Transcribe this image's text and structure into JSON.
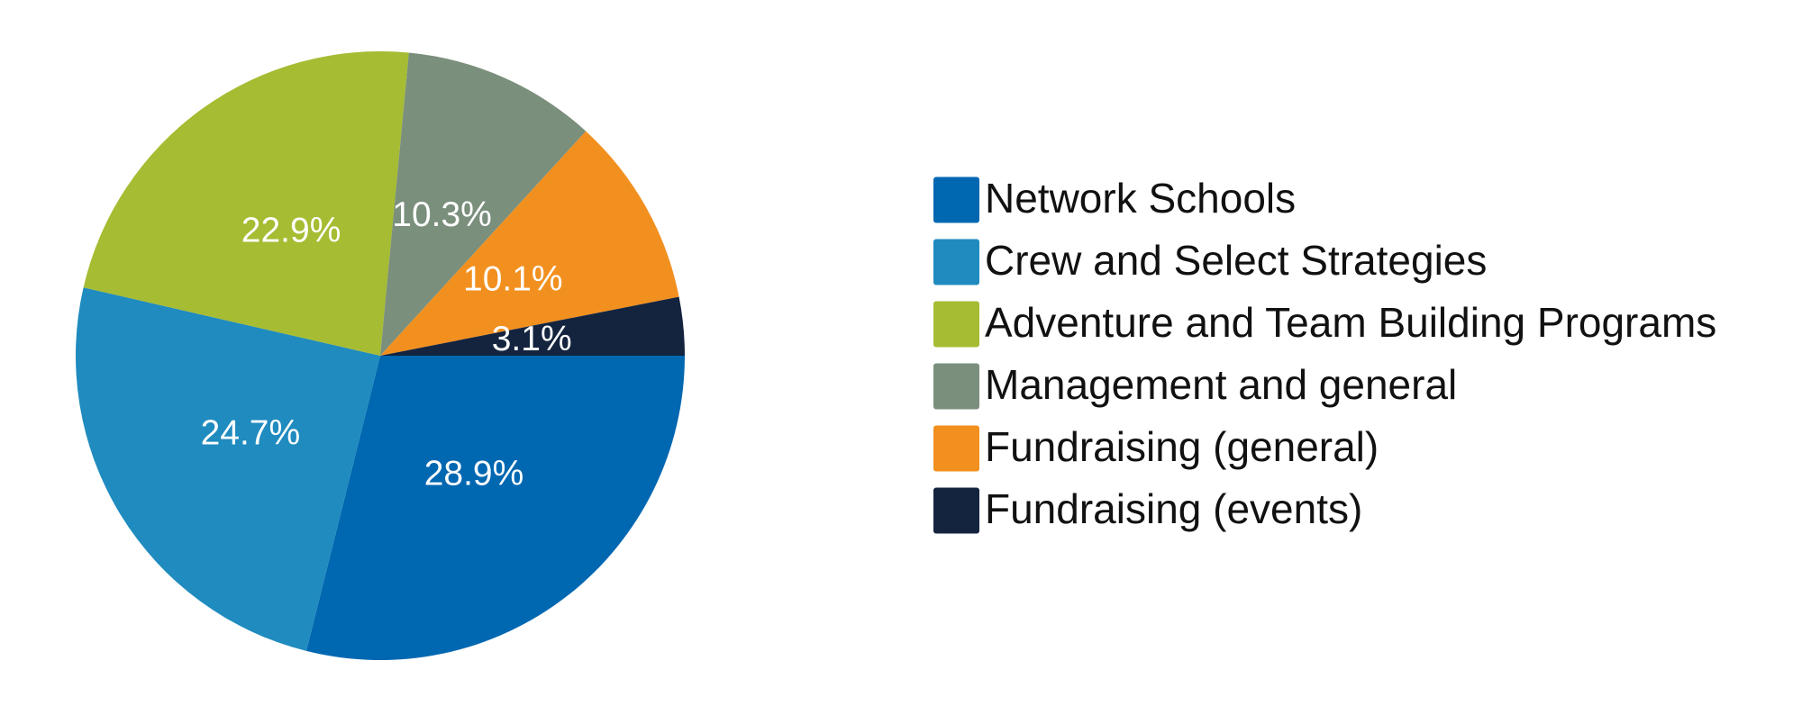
{
  "chart_data": {
    "type": "pie",
    "categories": [
      "Network Schools",
      "Crew and Select Strategies",
      "Adventure and Team Building Programs",
      "Management and general",
      "Fundraising (general)",
      "Fundraising (events)"
    ],
    "values": [
      28.9,
      24.7,
      22.9,
      10.3,
      10.1,
      3.1
    ],
    "value_labels": [
      "28.9%",
      "24.7%",
      "22.9%",
      "10.3%",
      "10.1%",
      "3.1%"
    ],
    "colors": [
      "#0067b1",
      "#1f8bbf",
      "#a6bc32",
      "#7a8f7c",
      "#f2901f",
      "#14243f"
    ],
    "legend": "right"
  }
}
